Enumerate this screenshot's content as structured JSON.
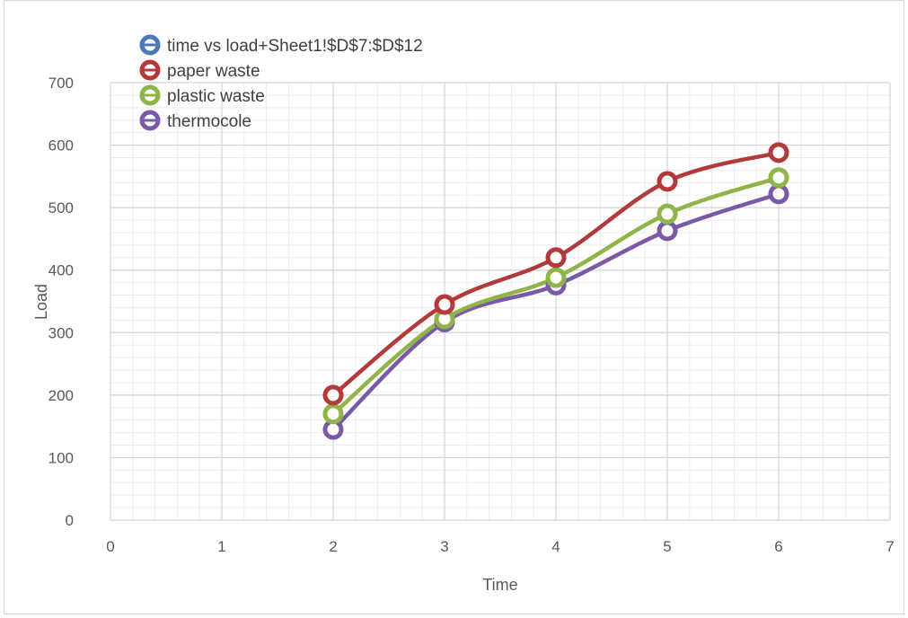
{
  "chart_data": {
    "type": "scatter",
    "title": "",
    "xlabel": "Time",
    "ylabel": "Load",
    "xlim": [
      0,
      7
    ],
    "ylim": [
      0,
      700
    ],
    "x_ticks": [
      0,
      1,
      2,
      3,
      4,
      5,
      6,
      7
    ],
    "y_ticks": [
      0,
      100,
      200,
      300,
      400,
      500,
      600,
      700
    ],
    "grid": true,
    "smooth_lines": true,
    "legend_position": "top-left",
    "series": [
      {
        "name": "time  vs load+Sheet1!$D$7:$D$12",
        "color": "#4a7ab5",
        "x": [],
        "y": []
      },
      {
        "name": "paper waste",
        "color": "#b23a3a",
        "x": [
          2,
          3,
          4,
          5,
          6
        ],
        "y": [
          200,
          345,
          420,
          542,
          588
        ]
      },
      {
        "name": "plastic waste",
        "color": "#8fb447",
        "x": [
          2,
          3,
          4,
          5,
          6
        ],
        "y": [
          170,
          322,
          388,
          490,
          548
        ]
      },
      {
        "name": "thermocole",
        "color": "#7a5aa6",
        "x": [
          2,
          3,
          4,
          5,
          6
        ],
        "y": [
          145,
          317,
          376,
          463,
          522
        ]
      }
    ]
  }
}
